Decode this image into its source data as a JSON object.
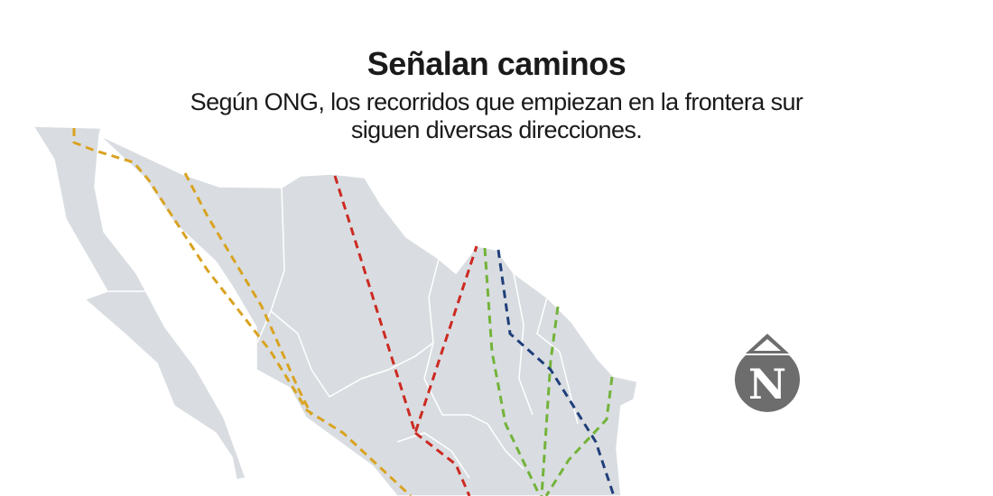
{
  "header": {
    "title": "Señalan caminos",
    "subtitle_lines": [
      "Según ONG, los recorridos que empiezan en la frontera sur",
      "siguen diversas direcciones."
    ]
  },
  "map": {
    "land_color": "#d9dde1",
    "border_color": "#ffffff",
    "routes": [
      {
        "color": "#d9a321"
      },
      {
        "color": "#d9a321"
      },
      {
        "color": "#cc2a22"
      },
      {
        "color": "#73b33a"
      },
      {
        "color": "#73b33a"
      },
      {
        "color": "#73b33a"
      },
      {
        "color": "#1f3f7a"
      }
    ]
  },
  "logo": {
    "letter": "N",
    "color": "#6d6d6d",
    "icon": "newspaper-n-drop-logo"
  }
}
